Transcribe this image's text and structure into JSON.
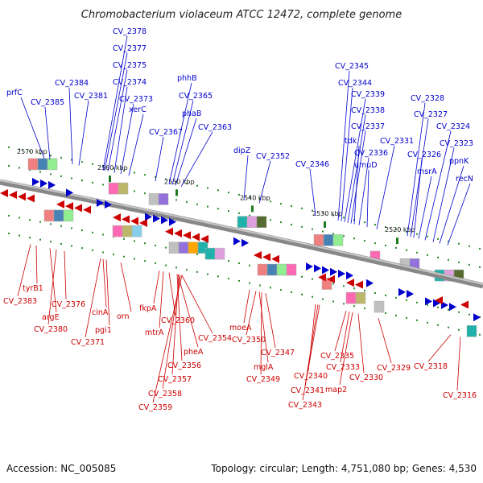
{
  "title": "Chromobacterium violaceum ATCC 12472, complete genome",
  "footer": {
    "accession": "Accession: NC_005085",
    "summary": "Topology: circular; Length: 4,751,080 bp; Genes: 4,530"
  },
  "colors": {
    "forward": "#0000cc",
    "reverse": "#cc0000",
    "backbone": "#888888",
    "dots": "#2a8a2a"
  },
  "ticks": [
    {
      "label": "2570 kbp"
    },
    {
      "label": "2560 kbp"
    },
    {
      "label": "2550 kbp"
    },
    {
      "label": "2540 kbp"
    },
    {
      "label": "2530 kbp"
    },
    {
      "label": "2520 kbp"
    }
  ],
  "top_labels": [
    {
      "text": "prfC"
    },
    {
      "text": "CV_2385"
    },
    {
      "text": "CV_2384"
    },
    {
      "text": "CV_2381"
    },
    {
      "text": "CV_2378"
    },
    {
      "text": "CV_2377"
    },
    {
      "text": "CV_2375"
    },
    {
      "text": "CV_2374"
    },
    {
      "text": "CV_2373"
    },
    {
      "text": "xerC"
    },
    {
      "text": "CV_2367"
    },
    {
      "text": "phhB"
    },
    {
      "text": "CV_2365"
    },
    {
      "text": "phaB"
    },
    {
      "text": "CV_2363"
    },
    {
      "text": "dipZ"
    },
    {
      "text": "CV_2352"
    },
    {
      "text": "CV_2346"
    },
    {
      "text": "CV_2345"
    },
    {
      "text": "CV_2344"
    },
    {
      "text": "CV_2339"
    },
    {
      "text": "CV_2338"
    },
    {
      "text": "CV_2337"
    },
    {
      "text": "tdk"
    },
    {
      "text": "CV_2336"
    },
    {
      "text": "umuD"
    },
    {
      "text": "CV_2331"
    },
    {
      "text": "CV_2328"
    },
    {
      "text": "CV_2327"
    },
    {
      "text": "CV_2326"
    },
    {
      "text": "msrA"
    },
    {
      "text": "CV_2324"
    },
    {
      "text": "CV_2323"
    },
    {
      "text": "ppnK"
    },
    {
      "text": "recN"
    }
  ],
  "bottom_labels": [
    {
      "text": "tyrB1"
    },
    {
      "text": "CV_2383"
    },
    {
      "text": "argE"
    },
    {
      "text": "CV_2380"
    },
    {
      "text": "CV_2376"
    },
    {
      "text": "cinA"
    },
    {
      "text": "pgi1"
    },
    {
      "text": "CV_2371"
    },
    {
      "text": "orn"
    },
    {
      "text": "fkpA"
    },
    {
      "text": "mtrA"
    },
    {
      "text": "CV_2360"
    },
    {
      "text": "CV_2354"
    },
    {
      "text": "pheA"
    },
    {
      "text": "CV_2356"
    },
    {
      "text": "CV_2357"
    },
    {
      "text": "CV_2358"
    },
    {
      "text": "CV_2359"
    },
    {
      "text": "moeA"
    },
    {
      "text": "CV_2350"
    },
    {
      "text": "CV_2347"
    },
    {
      "text": "mglA"
    },
    {
      "text": "CV_2349"
    },
    {
      "text": "CV_2340"
    },
    {
      "text": "CV_2341"
    },
    {
      "text": "CV_2343"
    },
    {
      "text": "CV_2335"
    },
    {
      "text": "CV_2333"
    },
    {
      "text": "map2"
    },
    {
      "text": "CV_2330"
    },
    {
      "text": "CV_2329"
    },
    {
      "text": "CV_2318"
    },
    {
      "text": "CV_2316"
    }
  ]
}
